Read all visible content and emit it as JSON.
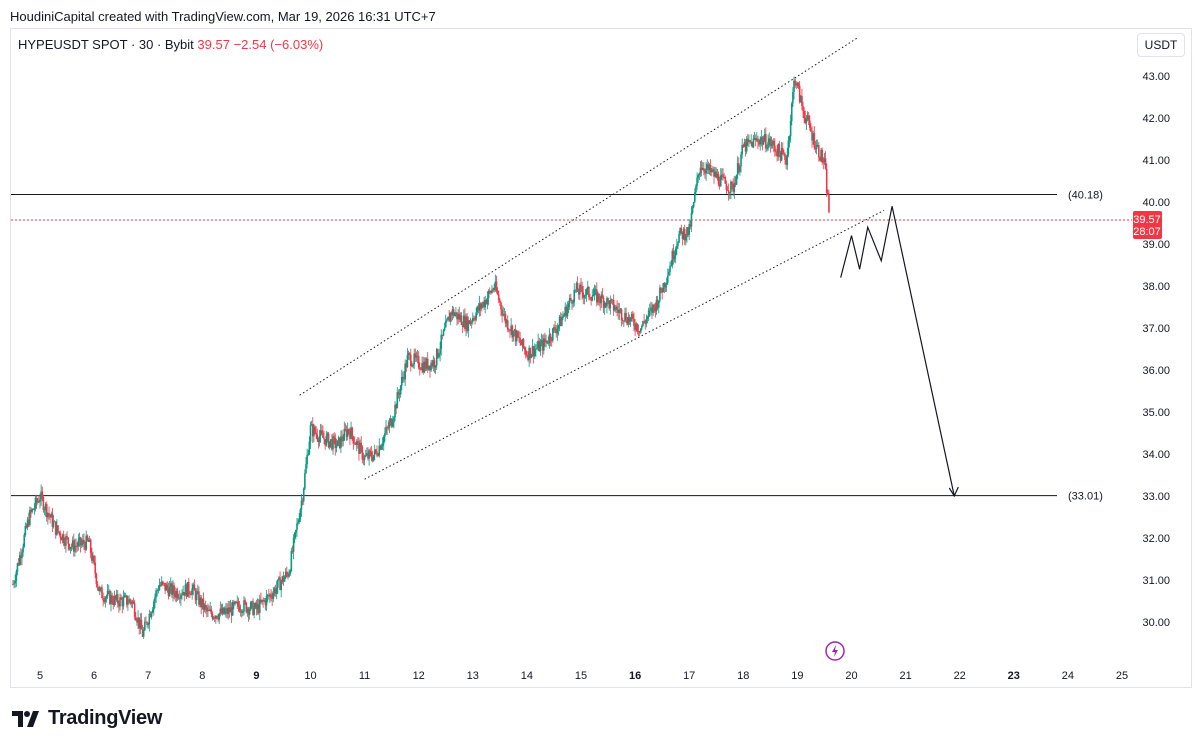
{
  "header": {
    "credit": "HoudiniCapital created with TradingView.com, Mar 19, 2026 16:31 UTC+7"
  },
  "symbol": {
    "name": "HYPEUSDT SPOT · 30 · Bybit",
    "price": "39.57",
    "change": "−2.54 (−6.03%)"
  },
  "currency_button": "USDT",
  "price_tag": {
    "price": "39.57",
    "countdown": "28:07"
  },
  "levels": [
    {
      "label": "(40.18)",
      "value": 40.18
    },
    {
      "label": "(33.01)",
      "value": 33.01
    }
  ],
  "footer": {
    "brand": "TradingView"
  },
  "colors": {
    "up": "#089981",
    "down": "#f23645",
    "tag": "#f23645",
    "line": "#131722"
  },
  "chart_data": {
    "type": "candlestick",
    "title": "HYPEUSDT SPOT · 30 · Bybit",
    "ylim": [
      29.2,
      43.8
    ],
    "yticks": [
      "30.00",
      "31.00",
      "32.00",
      "33.00",
      "34.00",
      "35.00",
      "36.00",
      "37.00",
      "38.00",
      "39.00",
      "40.00",
      "41.00",
      "42.00",
      "43.00"
    ],
    "xticks": [
      {
        "label": "5",
        "bold": false
      },
      {
        "label": "6",
        "bold": false
      },
      {
        "label": "7",
        "bold": false
      },
      {
        "label": "8",
        "bold": false
      },
      {
        "label": "9",
        "bold": true
      },
      {
        "label": "10",
        "bold": false
      },
      {
        "label": "11",
        "bold": false
      },
      {
        "label": "12",
        "bold": false
      },
      {
        "label": "13",
        "bold": false
      },
      {
        "label": "14",
        "bold": false
      },
      {
        "label": "15",
        "bold": false
      },
      {
        "label": "16",
        "bold": true
      },
      {
        "label": "17",
        "bold": false
      },
      {
        "label": "18",
        "bold": false
      },
      {
        "label": "19",
        "bold": false
      },
      {
        "label": "20",
        "bold": false
      },
      {
        "label": "21",
        "bold": false
      },
      {
        "label": "22",
        "bold": false
      },
      {
        "label": "23",
        "bold": true
      },
      {
        "label": "24",
        "bold": false
      },
      {
        "label": "25",
        "bold": false
      }
    ],
    "xlim": [
      4.5,
      25.3
    ],
    "price_path": [
      [
        4.5,
        30.9
      ],
      [
        4.8,
        32.5
      ],
      [
        5.0,
        33.0
      ],
      [
        5.3,
        32.2
      ],
      [
        5.6,
        31.8
      ],
      [
        5.9,
        31.9
      ],
      [
        6.1,
        30.7
      ],
      [
        6.4,
        30.5
      ],
      [
        6.7,
        30.5
      ],
      [
        6.9,
        29.7
      ],
      [
        7.2,
        30.9
      ],
      [
        7.5,
        30.7
      ],
      [
        7.8,
        30.8
      ],
      [
        8.1,
        30.2
      ],
      [
        8.4,
        30.2
      ],
      [
        8.7,
        30.4
      ],
      [
        9.0,
        30.3
      ],
      [
        9.3,
        30.7
      ],
      [
        9.6,
        31.2
      ],
      [
        9.85,
        33.0
      ],
      [
        10.0,
        34.6
      ],
      [
        10.2,
        34.4
      ],
      [
        10.5,
        34.2
      ],
      [
        10.7,
        34.6
      ],
      [
        11.0,
        33.9
      ],
      [
        11.2,
        34.0
      ],
      [
        11.5,
        34.8
      ],
      [
        11.8,
        36.3
      ],
      [
        12.1,
        36.1
      ],
      [
        12.3,
        36.2
      ],
      [
        12.6,
        37.4
      ],
      [
        12.9,
        37.1
      ],
      [
        13.2,
        37.6
      ],
      [
        13.4,
        38.0
      ],
      [
        13.6,
        37.2
      ],
      [
        13.8,
        36.8
      ],
      [
        14.0,
        36.4
      ],
      [
        14.3,
        36.6
      ],
      [
        14.6,
        37.1
      ],
      [
        14.9,
        37.9
      ],
      [
        15.2,
        37.8
      ],
      [
        15.5,
        37.6
      ],
      [
        15.8,
        37.3
      ],
      [
        16.1,
        37.0
      ],
      [
        16.4,
        37.6
      ],
      [
        16.6,
        38.3
      ],
      [
        16.8,
        39.2
      ],
      [
        17.0,
        39.3
      ],
      [
        17.2,
        40.9
      ],
      [
        17.5,
        40.6
      ],
      [
        17.8,
        40.3
      ],
      [
        18.0,
        41.3
      ],
      [
        18.3,
        41.5
      ],
      [
        18.5,
        41.4
      ],
      [
        18.8,
        41.0
      ],
      [
        18.95,
        43.0
      ],
      [
        19.1,
        42.2
      ],
      [
        19.3,
        41.5
      ],
      [
        19.5,
        40.9
      ],
      [
        19.6,
        39.57
      ]
    ],
    "annotations": {
      "channel_upper": [
        [
          9.8,
          35.4
        ],
        [
          20.1,
          43.9
        ]
      ],
      "channel_lower": [
        [
          11.0,
          33.4
        ],
        [
          20.6,
          39.8
        ]
      ],
      "projection_path": [
        [
          19.8,
          38.2
        ],
        [
          20.0,
          39.2
        ],
        [
          20.15,
          38.4
        ],
        [
          20.3,
          39.4
        ],
        [
          20.55,
          38.6
        ],
        [
          20.75,
          39.9
        ],
        [
          21.9,
          33.0
        ]
      ]
    }
  }
}
